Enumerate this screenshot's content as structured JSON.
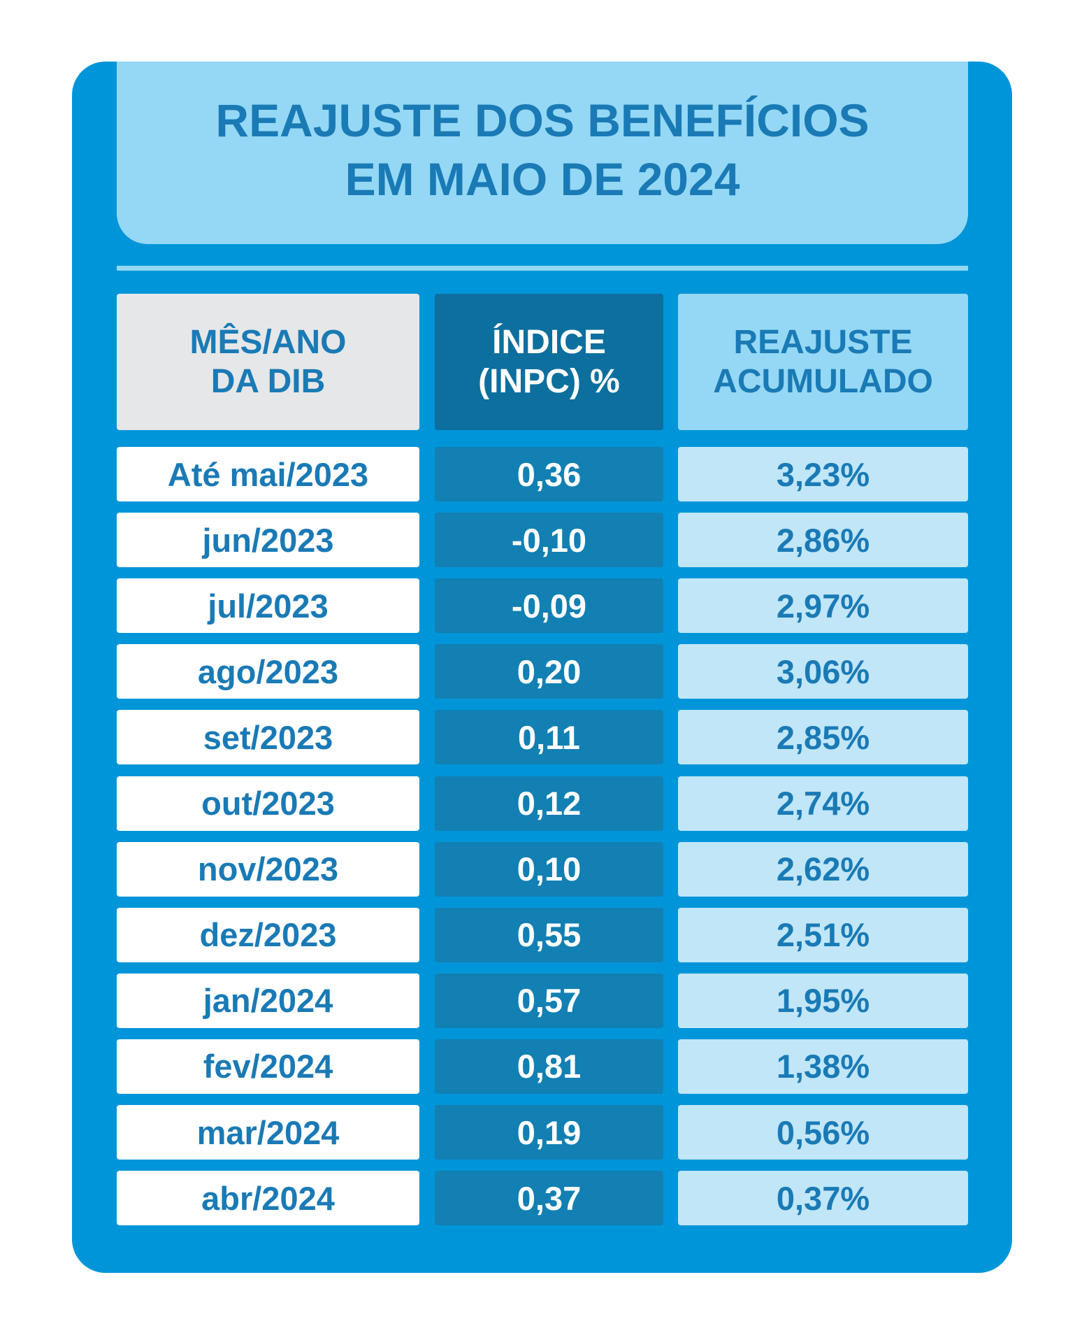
{
  "header": {
    "title_lines": [
      "REAJUSTE DOS BENEFÍCIOS",
      "EM MAIO DE 2024"
    ]
  },
  "table": {
    "columns": [
      [
        "MÊS/ANO",
        "DA DIB"
      ],
      [
        "ÍNDICE",
        "(INPC) %"
      ],
      [
        "REAJUSTE",
        "ACUMULADO"
      ]
    ],
    "rows": [
      [
        "Até mai/2023",
        "0,36",
        "3,23%"
      ],
      [
        "jun/2023",
        "-0,10",
        "2,86%"
      ],
      [
        "jul/2023",
        "-0,09",
        "2,97%"
      ],
      [
        "ago/2023",
        "0,20",
        "3,06%"
      ],
      [
        "set/2023",
        "0,11",
        "2,85%"
      ],
      [
        "out/2023",
        "0,12",
        "2,74%"
      ],
      [
        "nov/2023",
        "0,10",
        "2,62%"
      ],
      [
        "dez/2023",
        "0,55",
        "2,51%"
      ],
      [
        "jan/2024",
        "0,57",
        "1,95%"
      ],
      [
        "fev/2024",
        "0,81",
        "1,38%"
      ],
      [
        "mar/2024",
        "0,19",
        "0,56%"
      ],
      [
        "abr/2024",
        "0,37",
        "0,37%"
      ]
    ]
  }
}
